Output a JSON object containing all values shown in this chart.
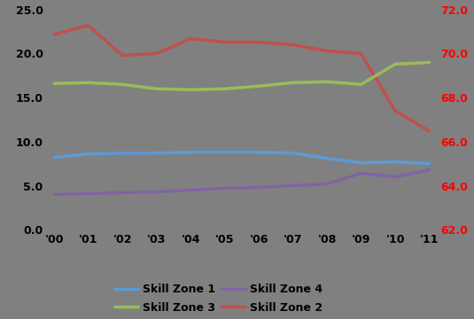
{
  "years": [
    0,
    1,
    2,
    3,
    4,
    5,
    6,
    7,
    8,
    9,
    10,
    11
  ],
  "x_labels": [
    "'00",
    "'01",
    "'02",
    "'03",
    "'04",
    "'05",
    "'06",
    "'07",
    "'08",
    "'09",
    "'10",
    "'11"
  ],
  "skill_zone_1": [
    8.2,
    8.6,
    8.7,
    8.7,
    8.8,
    8.8,
    8.8,
    8.7,
    8.1,
    7.6,
    7.7,
    7.5
  ],
  "skill_zone_2": [
    22.2,
    23.2,
    19.8,
    20.0,
    21.7,
    21.3,
    21.3,
    21.0,
    20.3,
    20.0,
    13.5,
    11.2
  ],
  "skill_zone_3": [
    16.6,
    16.7,
    16.5,
    16.0,
    15.9,
    16.0,
    16.3,
    16.7,
    16.8,
    16.5,
    18.8,
    19.0
  ],
  "skill_zone_4": [
    4.0,
    4.1,
    4.2,
    4.3,
    4.5,
    4.7,
    4.8,
    5.0,
    5.2,
    6.4,
    6.0,
    6.8
  ],
  "colors": {
    "skill_zone_1": "#5B9BD5",
    "skill_zone_2": "#C0504D",
    "skill_zone_3": "#9BBB59",
    "skill_zone_4": "#8064A2"
  },
  "ylim_left": [
    0.0,
    25.0
  ],
  "ylim_right": [
    62.0,
    72.0
  ],
  "yticks_left": [
    0.0,
    5.0,
    10.0,
    15.0,
    20.0,
    25.0
  ],
  "yticks_right": [
    62.0,
    64.0,
    66.0,
    68.0,
    70.0,
    72.0
  ],
  "background_color": "#808080",
  "line_width": 2.5,
  "figsize": [
    5.35,
    3.6
  ],
  "dpi": 100,
  "legend_order": [
    "skill_zone_1",
    "skill_zone_3",
    "skill_zone_4",
    "skill_zone_2"
  ],
  "legend_labels": [
    "Skill Zone 1",
    "Skill Zone 3",
    "Skill Zone 4",
    "Skill Zone 2"
  ],
  "tick_fontsize": 9,
  "legend_fontsize": 9
}
